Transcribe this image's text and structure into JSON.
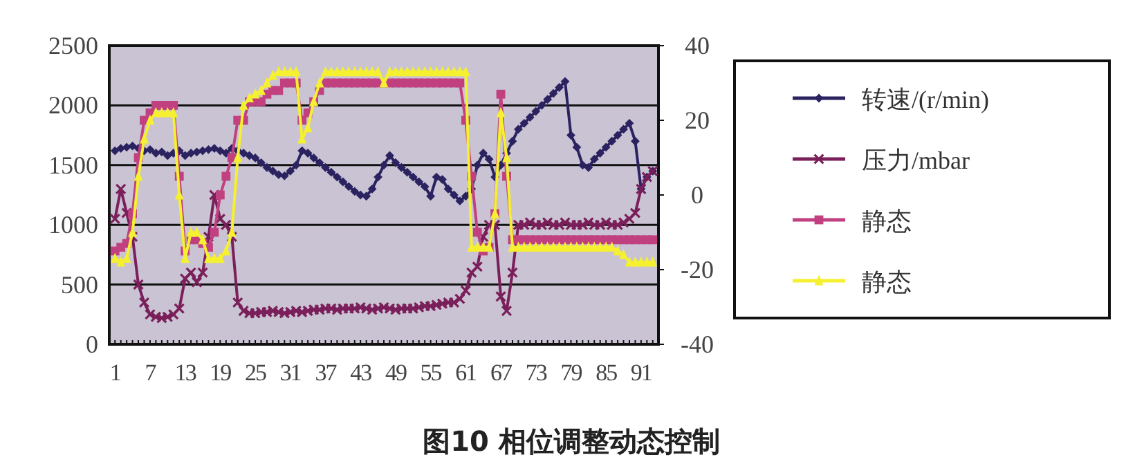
{
  "chart_data": {
    "type": "line",
    "title": "图10 相位调整动态控制",
    "categories": [
      "1",
      null,
      null,
      null,
      null,
      null,
      "7",
      null,
      null,
      null,
      null,
      null,
      "13",
      null,
      null,
      null,
      null,
      null,
      "19",
      null,
      null,
      null,
      null,
      null,
      "25",
      null,
      null,
      null,
      null,
      null,
      "31",
      null,
      null,
      null,
      null,
      null,
      "37",
      null,
      null,
      null,
      null,
      null,
      "43",
      null,
      null,
      null,
      null,
      null,
      "49",
      null,
      null,
      null,
      null,
      null,
      "55",
      null,
      null,
      null,
      null,
      null,
      "61",
      null,
      null,
      null,
      null,
      null,
      "67",
      null,
      null,
      null,
      null,
      null,
      "73",
      null,
      null,
      null,
      null,
      null,
      "79",
      null,
      null,
      null,
      null,
      null,
      "85",
      null,
      null,
      null,
      null,
      null,
      "91",
      null,
      null
    ],
    "series": [
      {
        "name": "转速/(r/min)",
        "color": "#2b2360",
        "marker": "diamond",
        "values": [
          1620,
          1640,
          1650,
          1660,
          1640,
          1620,
          1630,
          1600,
          1610,
          1580,
          1600,
          1620,
          1580,
          1600,
          1610,
          1620,
          1630,
          1640,
          1620,
          1600,
          1640,
          1620,
          1600,
          1580,
          1560,
          1520,
          1480,
          1450,
          1420,
          1410,
          1450,
          1500,
          1620,
          1600,
          1560,
          1520,
          1480,
          1440,
          1400,
          1360,
          1320,
          1280,
          1250,
          1240,
          1300,
          1400,
          1500,
          1580,
          1520,
          1480,
          1440,
          1400,
          1360,
          1320,
          1240,
          1400,
          1380,
          1300,
          1250,
          1200,
          1240,
          1300,
          1500,
          1600,
          1550,
          1400,
          1500,
          1600,
          1700,
          1800,
          1850,
          1900,
          1950,
          2000,
          2050,
          2100,
          2150,
          2200,
          1750,
          1650,
          1500,
          1480,
          1550,
          1600,
          1650,
          1700,
          1750,
          1800,
          1850,
          1700,
          1300,
          1400,
          1450
        ]
      },
      {
        "name": "压力/mbar",
        "color": "#7a1f5a",
        "marker": "cross",
        "values": [
          1050,
          1300,
          1100,
          900,
          500,
          350,
          250,
          230,
          220,
          230,
          250,
          300,
          550,
          600,
          520,
          600,
          900,
          1250,
          1050,
          1000,
          900,
          350,
          280,
          260,
          260,
          270,
          270,
          280,
          270,
          260,
          270,
          280,
          270,
          280,
          290,
          290,
          300,
          300,
          290,
          300,
          300,
          300,
          310,
          300,
          290,
          300,
          310,
          300,
          290,
          300,
          300,
          300,
          310,
          320,
          320,
          330,
          340,
          350,
          350,
          380,
          450,
          600,
          650,
          900,
          1000,
          1000,
          400,
          280,
          600,
          1000,
          1000,
          1020,
          1000,
          1000,
          1020,
          1000,
          1000,
          1020,
          1000,
          1000,
          1000,
          1020,
          1000,
          1000,
          1020,
          1000,
          1000,
          1020,
          1050,
          1100,
          1300,
          1400,
          1450
        ]
      },
      {
        "name": "静态",
        "color": "#c04080",
        "marker": "square",
        "axis": "y2",
        "values": [
          -15,
          -14,
          -13,
          -5,
          10,
          20,
          22,
          24,
          24,
          24,
          24,
          5,
          -15,
          -12,
          -12,
          -13,
          -14,
          -10,
          0,
          5,
          10,
          20,
          20,
          25,
          25,
          25,
          27,
          28,
          28,
          30,
          30,
          30,
          20,
          22,
          25,
          28,
          30,
          30,
          30,
          30,
          30,
          30,
          30,
          30,
          30,
          30,
          30,
          30,
          30,
          30,
          30,
          30,
          30,
          30,
          30,
          30,
          30,
          30,
          30,
          30,
          20,
          5,
          -10,
          -15,
          -14,
          -5,
          27,
          5,
          -12,
          -12,
          -12,
          -12,
          -12,
          -12,
          -12,
          -12,
          -12,
          -12,
          -12,
          -12,
          -12,
          -12,
          -12,
          -12,
          -12,
          -12,
          -12,
          -12,
          -12,
          -12,
          -12,
          -12,
          -12
        ]
      },
      {
        "name": "静态",
        "color": "#f5f030",
        "marker": "triangle",
        "axis": "y2",
        "values": [
          -17,
          -18,
          -17,
          -10,
          5,
          15,
          20,
          22,
          22,
          22,
          22,
          0,
          -17,
          -10,
          -10,
          -12,
          -17,
          -17,
          -17,
          -15,
          -10,
          10,
          24,
          26,
          27,
          28,
          30,
          32,
          33,
          33,
          33,
          33,
          15,
          18,
          25,
          30,
          33,
          33,
          33,
          33,
          33,
          33,
          33,
          33,
          33,
          33,
          30,
          33,
          33,
          33,
          33,
          33,
          33,
          33,
          33,
          33,
          33,
          33,
          33,
          33,
          33,
          -14,
          -14,
          -14,
          -14,
          -5,
          22,
          10,
          -14,
          -14,
          -14,
          -14,
          -14,
          -14,
          -14,
          -14,
          -14,
          -14,
          -14,
          -14,
          -14,
          -14,
          -14,
          -14,
          -14,
          -14,
          -15,
          -16,
          -18,
          -18,
          -18,
          -18,
          -18
        ]
      }
    ],
    "ylim": [
      0,
      2500
    ],
    "yticks": [
      0,
      500,
      1000,
      1500,
      2000,
      2500
    ],
    "y2lim": [
      -40,
      40
    ],
    "y2ticks": [
      -40,
      -20,
      0,
      20,
      40
    ],
    "grid": "y",
    "legend": "right",
    "line_style": "solid"
  }
}
